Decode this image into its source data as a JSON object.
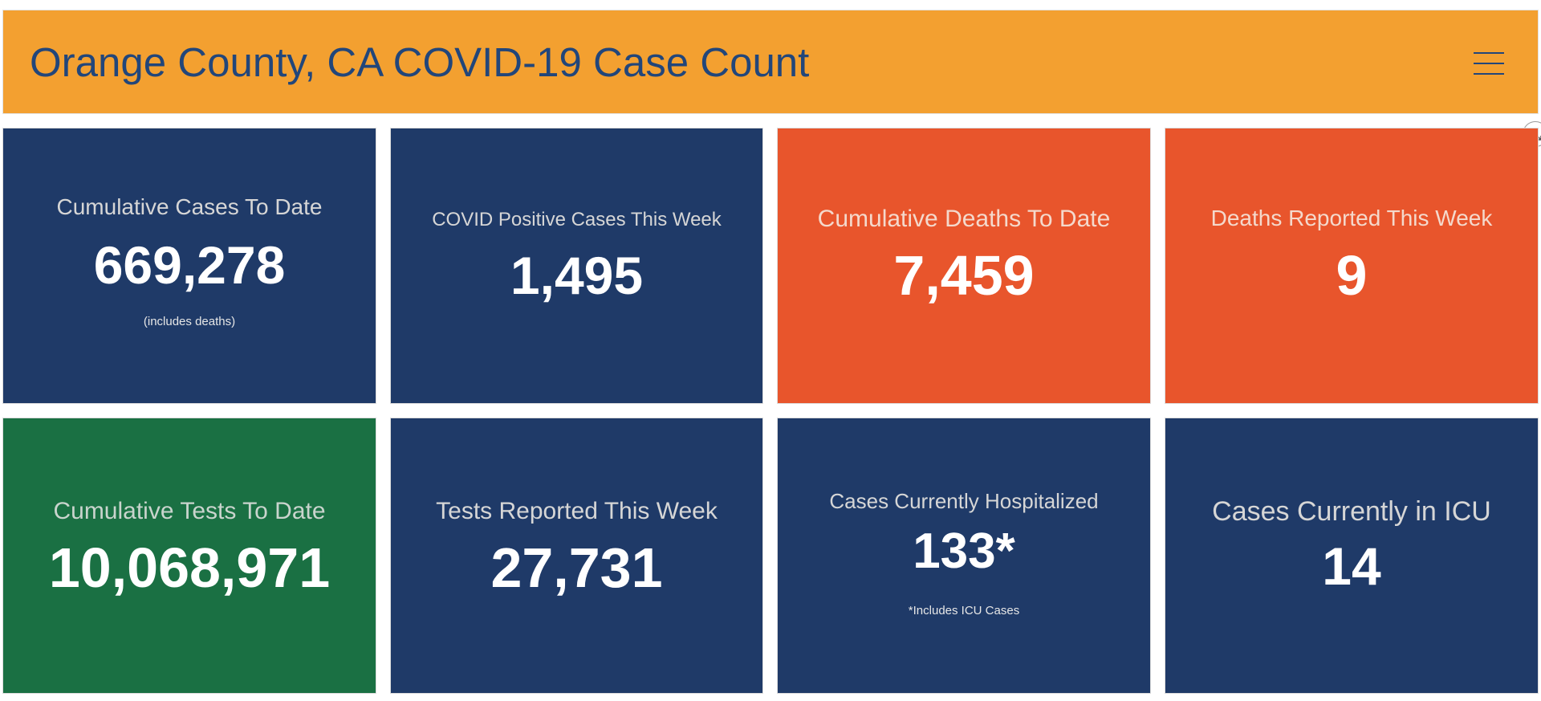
{
  "header": {
    "title": "Orange County, CA COVID-19 Case Count",
    "menu_icon": "hamburger-menu-icon"
  },
  "expand_icon": "expand-icon",
  "colors": {
    "header_bg": "#f3a030",
    "title_text": "#22467a",
    "navy": "#1f3a68",
    "red": "#e8552c",
    "green": "#1a7043"
  },
  "tiles": {
    "cumulative_cases": {
      "label": "Cumulative Cases To Date",
      "value": "669,278",
      "note": "(includes deaths)"
    },
    "positive_cases_week": {
      "label": "COVID Positive Cases This Week",
      "value": "1,495"
    },
    "cumulative_deaths": {
      "label": "Cumulative Deaths To Date",
      "value": "7,459"
    },
    "deaths_week": {
      "label": "Deaths Reported This Week",
      "value": "9"
    },
    "cumulative_tests": {
      "label": "Cumulative Tests To Date",
      "value": "10,068,971"
    },
    "tests_week": {
      "label": "Tests Reported This Week",
      "value": "27,731"
    },
    "hospitalized": {
      "label": "Cases Currently Hospitalized",
      "value": "133*",
      "note": "*Includes ICU Cases"
    },
    "icu": {
      "label": "Cases Currently in ICU",
      "value": "14"
    }
  }
}
